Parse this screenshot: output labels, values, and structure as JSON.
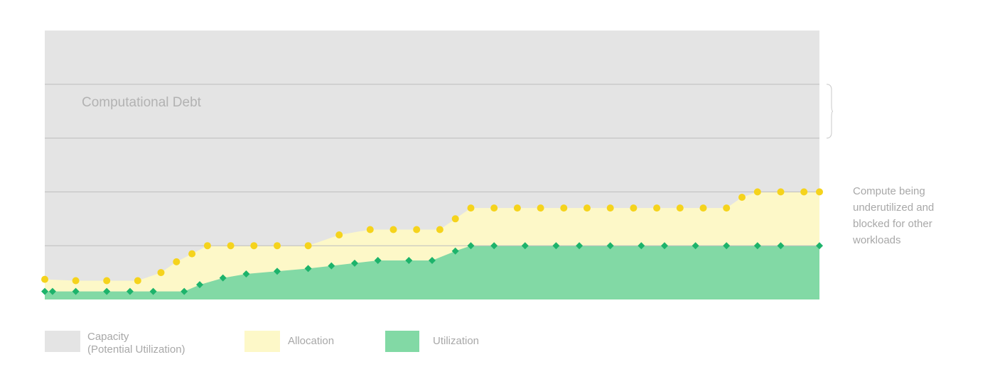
{
  "chart_data": {
    "type": "area",
    "title": "",
    "xlabel": "",
    "ylabel": "",
    "ylim": [
      0,
      100
    ],
    "grid": true,
    "legend_position": "bottom",
    "region_label": "Computational Debt",
    "annotation": {
      "lines": [
        "Compute being",
        "underutilized and",
        "blocked for other",
        "workloads"
      ],
      "spans": [
        60,
        80
      ]
    },
    "series": [
      {
        "name": "Capacity",
        "name_sub": "(Potential Utilization)",
        "color": "#e4e4e4",
        "values": [
          100,
          100
        ]
      },
      {
        "name": "Allocation",
        "color": "#fdf8c8",
        "marker_color": "#f5d31c",
        "marker": "circle",
        "points": [
          [
            0,
            7.5
          ],
          [
            4,
            7
          ],
          [
            8,
            7
          ],
          [
            12,
            7
          ],
          [
            15,
            10
          ],
          [
            17,
            14
          ],
          [
            19,
            17
          ],
          [
            21,
            20
          ],
          [
            24,
            20
          ],
          [
            27,
            20
          ],
          [
            30,
            20
          ],
          [
            34,
            20
          ],
          [
            38,
            24
          ],
          [
            42,
            26
          ],
          [
            45,
            26
          ],
          [
            48,
            26
          ],
          [
            51,
            26
          ],
          [
            53,
            30
          ],
          [
            55,
            34
          ],
          [
            58,
            34
          ],
          [
            61,
            34
          ],
          [
            64,
            34
          ],
          [
            67,
            34
          ],
          [
            70,
            34
          ],
          [
            73,
            34
          ],
          [
            76,
            34
          ],
          [
            79,
            34
          ],
          [
            82,
            34
          ],
          [
            85,
            34
          ],
          [
            88,
            34
          ],
          [
            90,
            38
          ],
          [
            92,
            40
          ],
          [
            95,
            40
          ],
          [
            98,
            40
          ],
          [
            100,
            40
          ]
        ]
      },
      {
        "name": "Utilization",
        "color": "#82d9a5",
        "marker_color": "#1db36b",
        "marker": "diamond",
        "points": [
          [
            0,
            3
          ],
          [
            1,
            3
          ],
          [
            4,
            3
          ],
          [
            8,
            3
          ],
          [
            11,
            3
          ],
          [
            14,
            3
          ],
          [
            18,
            3
          ],
          [
            20,
            5.5
          ],
          [
            23,
            8
          ],
          [
            26,
            9.5
          ],
          [
            30,
            10.5
          ],
          [
            34,
            11.5
          ],
          [
            37,
            12.5
          ],
          [
            40,
            13.5
          ],
          [
            43,
            14.5
          ],
          [
            47,
            14.5
          ],
          [
            50,
            14.5
          ],
          [
            53,
            18
          ],
          [
            55,
            20
          ],
          [
            58,
            20
          ],
          [
            62,
            20
          ],
          [
            66,
            20
          ],
          [
            69,
            20
          ],
          [
            73,
            20
          ],
          [
            77,
            20
          ],
          [
            80,
            20
          ],
          [
            84,
            20
          ],
          [
            88,
            20
          ],
          [
            92,
            20
          ],
          [
            95,
            20
          ],
          [
            100,
            20
          ]
        ]
      }
    ]
  }
}
